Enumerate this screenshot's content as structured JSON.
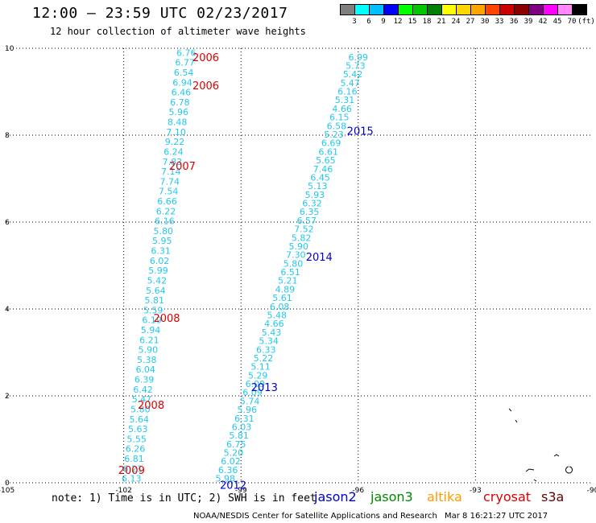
{
  "header": {
    "title": "12:00 – 23:59 UTC 02/23/2017",
    "subtitle": "12 hour collection of altimeter wave heights"
  },
  "legend": {
    "colors": [
      "#7f7f7f",
      "#00ffff",
      "#00bfff",
      "#0000ff",
      "#00ff00",
      "#00c800",
      "#008000",
      "#ffff00",
      "#ffd700",
      "#ffa500",
      "#ff4500",
      "#cd0000",
      "#8b0000",
      "#800080",
      "#ff00ff",
      "#ff88ff",
      "#000000"
    ],
    "labels": [
      "3",
      "6",
      "9",
      "12",
      "15",
      "18",
      "21",
      "24",
      "27",
      "30",
      "33",
      "36",
      "39",
      "42",
      "45",
      "70",
      "(ft)"
    ]
  },
  "footer": {
    "note": "note: 1) Time is in UTC; 2) SWH is in feet",
    "satellites": [
      {
        "name": "jason2",
        "color": "#0000cc"
      },
      {
        "name": "jason3",
        "color": "#008800"
      },
      {
        "name": "altika",
        "color": "#ff9900"
      },
      {
        "name": "cryosat",
        "color": "#dd0000"
      },
      {
        "name": "s3a",
        "color": "#660000"
      }
    ],
    "credit": "NOAA/NESDIS Center for Satellite Applications and Research",
    "timestamp": "Mar  8 16:21:27 UTC 2017"
  },
  "chart_data": {
    "type": "scatter",
    "title": "12:00 – 23:59 UTC 02/23/2017",
    "subtitle": "12 hour collection of altimeter wave heights",
    "xlim": [
      -105,
      -90
    ],
    "ylim": [
      0,
      10
    ],
    "x_ticks": [
      -105,
      -102,
      -99,
      -96,
      -93,
      -90
    ],
    "x_tick_labels": [
      "-105",
      "-102",
      "-99",
      "-96",
      "-93",
      "-90"
    ],
    "y_ticks": [
      0,
      2,
      4,
      6,
      8,
      10
    ],
    "grid": true,
    "label_color": "#22c8ee",
    "tracks": [
      {
        "name": "track-west",
        "x_top": -100.4,
        "x_bottom": -101.8,
        "y_top": 9.9,
        "y_bottom": 0.1,
        "values": [
          "6.76",
          "6.77",
          "6.54",
          "6.94",
          "6.46",
          "6.78",
          "5.96",
          "8.48",
          "7.10",
          "9.22",
          "6.24",
          "7.83",
          "7.14",
          "7.74",
          "7.54",
          "6.66",
          "6.22",
          "6.16",
          "5.80",
          "5.95",
          "6.31",
          "6.02",
          "5.99",
          "5.42",
          "5.64",
          "5.81",
          "5.59",
          "6.19",
          "5.94",
          "6.21",
          "5.90",
          "5.38",
          "6.04",
          "6.39",
          "6.42",
          "5.47",
          "5.80",
          "5.64",
          "5.63",
          "5.55",
          "6.26",
          "6.81",
          "6.21",
          "6.13"
        ]
      },
      {
        "name": "track-east",
        "x_top": -96.0,
        "x_bottom": -99.4,
        "y_top": 9.8,
        "y_bottom": 0.1,
        "values": [
          "6.99",
          "5.73",
          "5.42",
          "5.47",
          "6.16",
          "5.31",
          "4.66",
          "6.15",
          "6.58",
          "5.23",
          "6.69",
          "6.61",
          "5.65",
          "7.46",
          "6.45",
          "5.13",
          "5.93",
          "6.32",
          "6.35",
          "6.57",
          "7.52",
          "5.82",
          "5.90",
          "7.30",
          "5.80",
          "6.51",
          "5.21",
          "4.89",
          "5.61",
          "6.08",
          "5.48",
          "4.66",
          "5.43",
          "5.34",
          "6.33",
          "5.22",
          "5.11",
          "5.29",
          "6.09",
          "6.09",
          "5.74",
          "5.96",
          "6.31",
          "6.03",
          "5.81",
          "6.75",
          "5.20",
          "6.02",
          "6.36",
          "5.98"
        ]
      }
    ],
    "annotations": [
      {
        "text": "2006",
        "x": -99.9,
        "y": 9.8,
        "color": "#dd0000"
      },
      {
        "text": "2006",
        "x": -99.9,
        "y": 9.15,
        "color": "#dd0000"
      },
      {
        "text": "2007",
        "x": -100.5,
        "y": 7.3,
        "color": "#dd0000"
      },
      {
        "text": "2008",
        "x": -100.9,
        "y": 3.8,
        "color": "#dd0000"
      },
      {
        "text": "2008",
        "x": -101.3,
        "y": 1.8,
        "color": "#dd0000"
      },
      {
        "text": "2009",
        "x": -101.8,
        "y": 0.3,
        "color": "#dd0000"
      },
      {
        "text": "2015",
        "x": -95.95,
        "y": 8.1,
        "color": "#0000cc"
      },
      {
        "text": "2014",
        "x": -97.0,
        "y": 5.2,
        "color": "#0000cc"
      },
      {
        "text": "2013",
        "x": -98.4,
        "y": 2.2,
        "color": "#0000cc"
      },
      {
        "text": "2012",
        "x": -99.2,
        "y": -0.05,
        "color": "#0000cc"
      }
    ]
  }
}
